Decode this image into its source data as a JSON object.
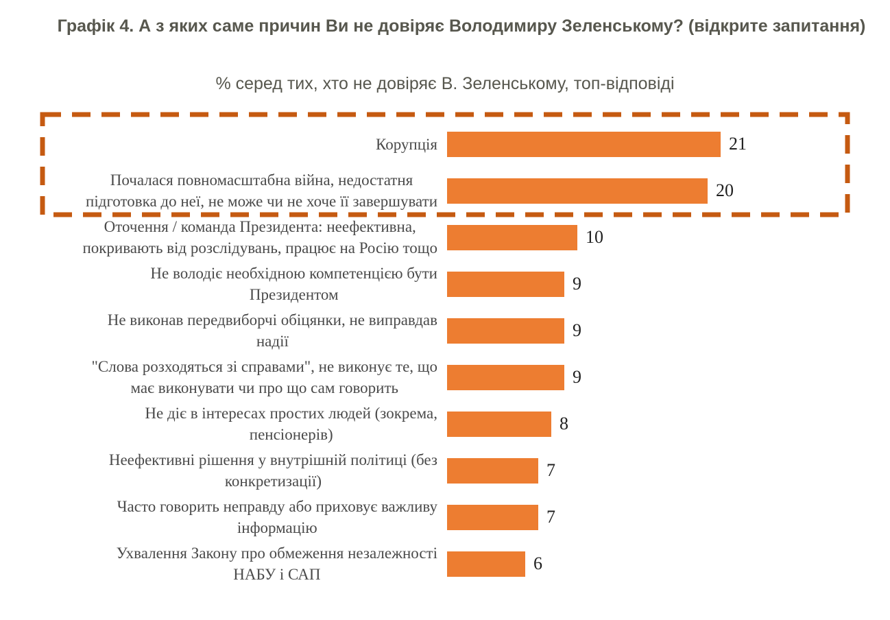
{
  "header": {
    "title": "Графік 4. А з яких саме причин Ви не довіряє Володимиру Зеленському? (відкрите запитання)",
    "subtitle": "% серед тих, хто не довіряє В. Зеленському, топ-відповіді"
  },
  "chart_data": {
    "type": "bar",
    "orientation": "horizontal",
    "title": "Графік 4. А з яких саме причин Ви не довіряє Володимиру Зеленському? (відкрите запитання)",
    "subtitle": "% серед тих, хто не довіряє В. Зеленському, топ-відповіді",
    "categories": [
      "Корупція",
      "Почалася повномасштабна війна, недостатня\nпідготовка до неї, не може чи не хоче її завершувати",
      "Оточення / команда Президента: неефективна,\nпокривають від розслідувань, працює на Росію тощо",
      "Не володіє необхідною компетенцією бути\nПрезидентом",
      "Не виконав передвиборчі обіцянки, не виправдав\nнадії",
      "\"Слова розходяться зі справами\", не виконує те, що\nмає виконувати чи про що сам говорить",
      "Не діє в інтересах простих людей (зокрема,\nпенсіонерів)",
      "Неефективні рішення у внутрішній політиці (без\nконкретизації)",
      "Часто говорить неправду або приховує важливу\nінформацію",
      "Ухвалення Закону про обмеження незалежності\nНАБУ і САП"
    ],
    "values": [
      21,
      20,
      10,
      9,
      9,
      9,
      8,
      7,
      7,
      6
    ],
    "xlabel": "",
    "ylabel": "",
    "xlim": [
      0,
      21
    ],
    "grid": false,
    "legend": false,
    "data_labels": true,
    "highlight": {
      "rows": [
        0,
        1
      ],
      "style": "dashed",
      "border_color": "#C55A11"
    },
    "colors": {
      "bar": "#ED7D31",
      "highlight_border": "#C55A11",
      "title_text": "#57574E",
      "category_text": "#4A4A4A",
      "value_text": "#1F1F1F",
      "background": "#FFFFFF"
    }
  }
}
